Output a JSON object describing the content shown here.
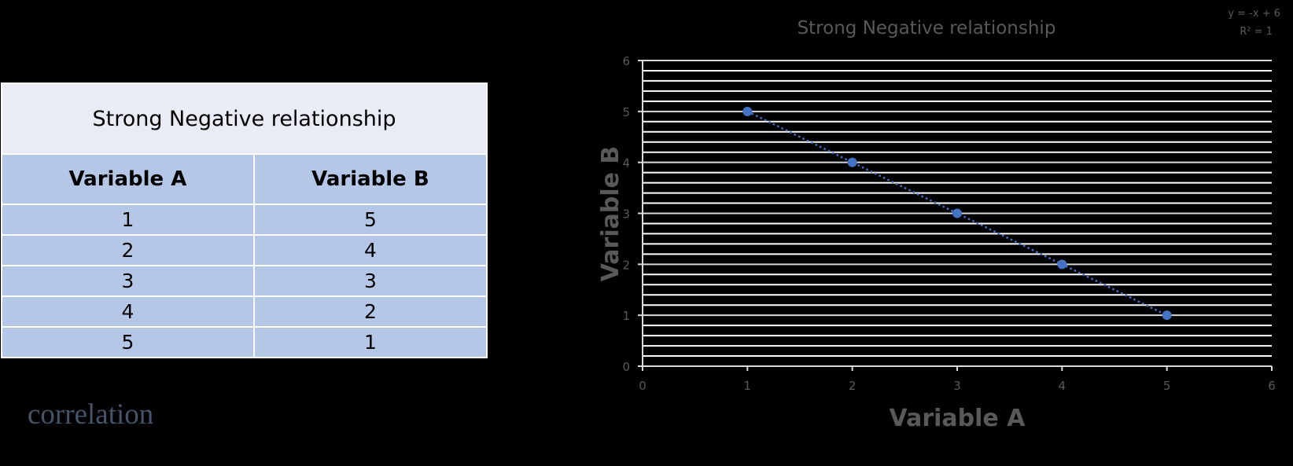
{
  "table": {
    "title": "Strong Negative relationship",
    "headers": [
      "Variable A",
      "Variable B"
    ],
    "rows": [
      [
        "1",
        "5"
      ],
      [
        "2",
        "4"
      ],
      [
        "3",
        "3"
      ],
      [
        "4",
        "2"
      ],
      [
        "5",
        "1"
      ]
    ],
    "colors": {
      "title_bg": "#e9ebf5",
      "cell_bg": "#b4c7e7"
    }
  },
  "caption": "correlation",
  "chart_data": {
    "type": "scatter",
    "title": "Strong Negative relationship",
    "xlabel": "Variable A",
    "ylabel": "Variable B",
    "x": [
      1,
      2,
      3,
      4,
      5
    ],
    "y": [
      5,
      4,
      3,
      2,
      1
    ],
    "xlim": [
      0,
      6
    ],
    "ylim": [
      0,
      6
    ],
    "xticks": [
      "0",
      "1",
      "2",
      "3",
      "4",
      "5",
      "6"
    ],
    "yticks": [
      "0",
      "1",
      "2",
      "3",
      "4",
      "5",
      "6"
    ],
    "grid": true,
    "minor_grid": true,
    "trendline": {
      "type": "linear",
      "style": "dotted",
      "equation": "y = -x + 6",
      "r_squared": "R² = 1"
    },
    "marker_color": "#4472c4"
  }
}
